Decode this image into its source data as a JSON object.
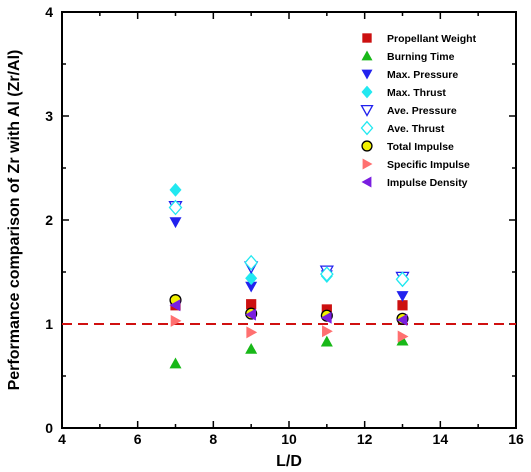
{
  "chart_data": {
    "type": "scatter",
    "xlabel": "L/D",
    "ylabel": "Performance comparison of Zr with Al (Zr/Al)",
    "xlim": [
      4,
      16
    ],
    "ylim": [
      0,
      4
    ],
    "xticks": [
      4,
      6,
      8,
      10,
      12,
      14,
      16
    ],
    "yticks": [
      0,
      1,
      2,
      3,
      4
    ],
    "grid": false,
    "legend_position": "top-right",
    "reference_line": {
      "y": 1,
      "style": "dashed",
      "color": "#d01010"
    },
    "series": [
      {
        "name": "Propellant Weight",
        "marker": "square",
        "color": "#cc1010",
        "filled": true,
        "x": [
          7,
          9,
          11,
          13
        ],
        "y": [
          1.18,
          1.19,
          1.14,
          1.18
        ]
      },
      {
        "name": "Burning Time",
        "marker": "triangle-up",
        "color": "#18b818",
        "filled": true,
        "x": [
          7,
          9,
          11,
          13
        ],
        "y": [
          0.62,
          0.76,
          0.83,
          0.84
        ]
      },
      {
        "name": "Max. Pressure",
        "marker": "triangle-down",
        "color": "#2222ee",
        "filled": true,
        "x": [
          7,
          9,
          11,
          13
        ],
        "y": [
          1.98,
          1.36,
          1.47,
          1.27
        ]
      },
      {
        "name": "Max. Thrust",
        "marker": "diamond",
        "color": "#22e8f0",
        "filled": true,
        "x": [
          7,
          9,
          11,
          13
        ],
        "y": [
          2.29,
          1.44,
          1.46,
          1.42
        ]
      },
      {
        "name": "Ave. Pressure",
        "marker": "triangle-down",
        "color": "#2222ee",
        "filled": false,
        "x": [
          7,
          9,
          11,
          13
        ],
        "y": [
          2.13,
          1.55,
          1.51,
          1.45
        ]
      },
      {
        "name": "Ave. Thrust",
        "marker": "diamond",
        "color": "#22e8f0",
        "filled": false,
        "x": [
          7,
          9,
          11,
          13
        ],
        "y": [
          2.12,
          1.59,
          1.48,
          1.43
        ]
      },
      {
        "name": "Total Impulse",
        "marker": "circle",
        "color": "#f0f000",
        "filled": true,
        "stroke": "#000000",
        "x": [
          7,
          9,
          11,
          13
        ],
        "y": [
          1.23,
          1.1,
          1.08,
          1.05
        ]
      },
      {
        "name": "Specific Impulse",
        "marker": "triangle-right",
        "color": "#ff7070",
        "filled": true,
        "x": [
          7,
          9,
          11,
          13
        ],
        "y": [
          1.03,
          0.92,
          0.93,
          0.88
        ]
      },
      {
        "name": "Impulse Density",
        "marker": "triangle-left",
        "color": "#7a1ee0",
        "filled": true,
        "x": [
          7,
          9,
          11,
          13
        ],
        "y": [
          1.18,
          1.09,
          1.06,
          1.04
        ]
      }
    ]
  }
}
